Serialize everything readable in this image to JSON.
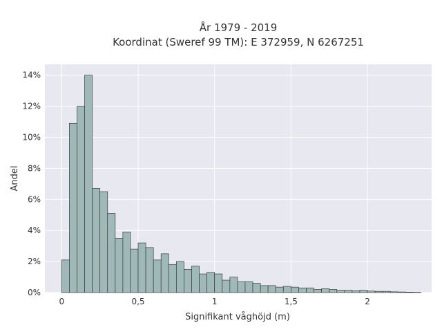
{
  "chart_data": {
    "type": "bar",
    "title_line1": "År 1979 - 2019",
    "title_line2": "Koordinat (Sweref 99 TM): E 372959, N 6267251",
    "xlabel": "Signifikant våghöjd (m)",
    "ylabel": "Andel",
    "bin_width": 0.05,
    "bin_start": 0.0,
    "xlim": [
      -0.11,
      2.42
    ],
    "ylim": [
      0,
      14.7
    ],
    "x_ticks": [
      {
        "value": 0,
        "label": "0"
      },
      {
        "value": 0.5,
        "label": "0,5"
      },
      {
        "value": 1,
        "label": "1"
      },
      {
        "value": 1.5,
        "label": "1,5"
      },
      {
        "value": 2,
        "label": "2"
      }
    ],
    "y_ticks": [
      {
        "value": 0,
        "label": "0%"
      },
      {
        "value": 2,
        "label": "2%"
      },
      {
        "value": 4,
        "label": "4%"
      },
      {
        "value": 6,
        "label": "6%"
      },
      {
        "value": 8,
        "label": "8%"
      },
      {
        "value": 10,
        "label": "10%"
      },
      {
        "value": 12,
        "label": "12%"
      },
      {
        "value": 14,
        "label": "14%"
      }
    ],
    "values": [
      2.1,
      10.9,
      12.0,
      14.0,
      6.7,
      6.5,
      5.1,
      3.5,
      3.9,
      2.8,
      3.2,
      2.9,
      2.1,
      2.5,
      1.8,
      2.0,
      1.5,
      1.7,
      1.2,
      1.3,
      1.2,
      0.8,
      1.0,
      0.7,
      0.7,
      0.6,
      0.45,
      0.45,
      0.35,
      0.4,
      0.35,
      0.3,
      0.3,
      0.2,
      0.25,
      0.2,
      0.15,
      0.15,
      0.12,
      0.15,
      0.1,
      0.08,
      0.08,
      0.05,
      0.04,
      0.03,
      0.02
    ],
    "grid": true,
    "colors": {
      "plot_background": "#e8e8f0",
      "bar_fill": "#9fb8b8",
      "bar_stroke": "#3a3a3a",
      "grid": "#ffffff"
    }
  }
}
